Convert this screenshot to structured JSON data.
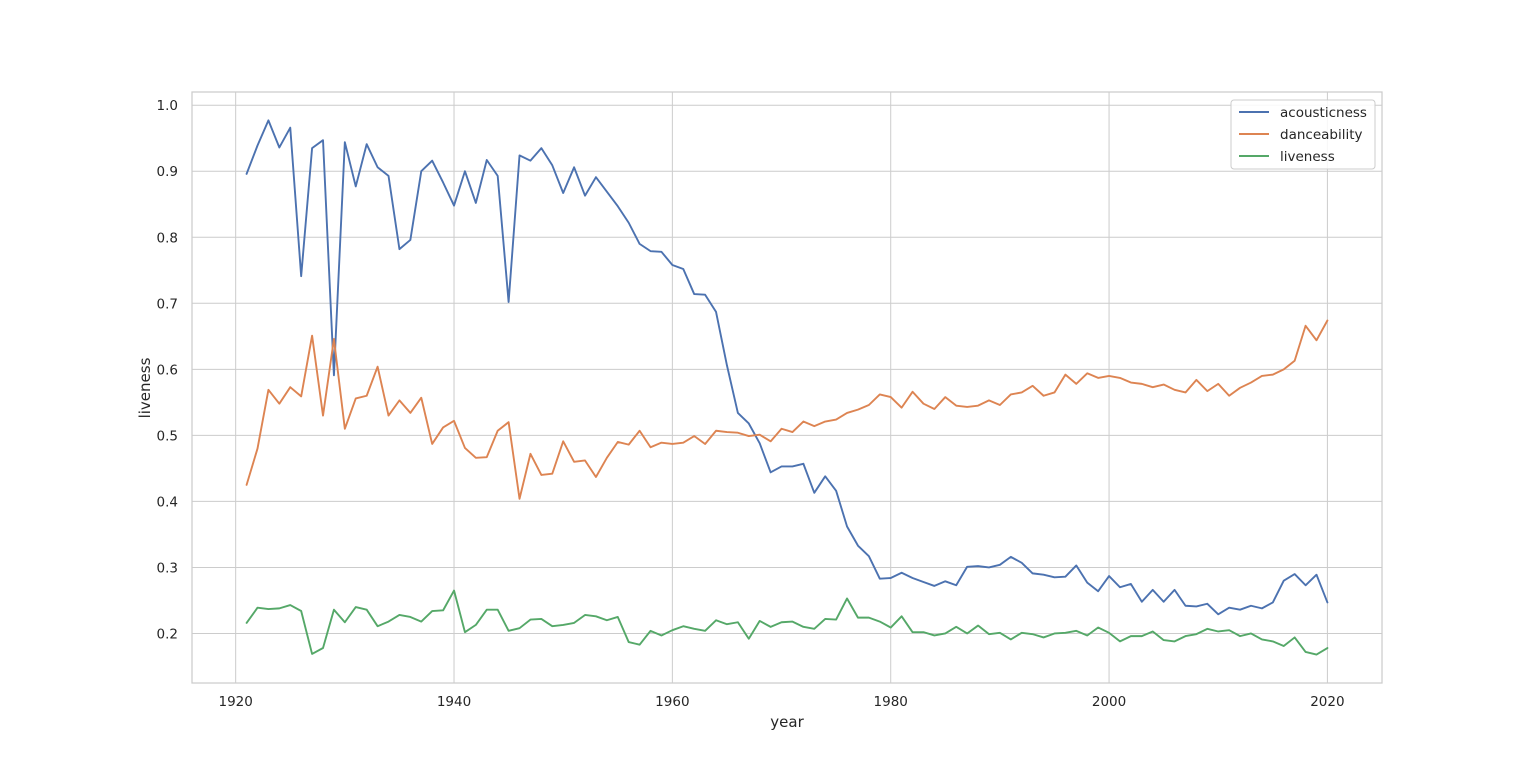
{
  "chart_data": {
    "type": "line",
    "title": "",
    "xlabel": "year",
    "ylabel": "liveness",
    "xlim": [
      1916,
      2025
    ],
    "ylim": [
      0.125,
      1.02
    ],
    "xticks": [
      1920,
      1940,
      1960,
      1980,
      2000,
      2020
    ],
    "yticks": [
      0.2,
      0.3,
      0.4,
      0.5,
      0.6,
      0.7,
      0.8,
      0.9,
      1.0
    ],
    "grid": true,
    "legend_position": "top-right",
    "x": [
      1921,
      1922,
      1923,
      1924,
      1925,
      1926,
      1927,
      1928,
      1929,
      1930,
      1931,
      1932,
      1933,
      1934,
      1935,
      1936,
      1937,
      1938,
      1939,
      1940,
      1941,
      1942,
      1943,
      1944,
      1945,
      1946,
      1947,
      1948,
      1949,
      1950,
      1951,
      1952,
      1953,
      1954,
      1955,
      1956,
      1957,
      1958,
      1959,
      1960,
      1961,
      1962,
      1963,
      1964,
      1965,
      1966,
      1967,
      1968,
      1969,
      1970,
      1971,
      1972,
      1973,
      1974,
      1975,
      1976,
      1977,
      1978,
      1979,
      1980,
      1981,
      1982,
      1983,
      1984,
      1985,
      1986,
      1987,
      1988,
      1989,
      1990,
      1991,
      1992,
      1993,
      1994,
      1995,
      1996,
      1997,
      1998,
      1999,
      2000,
      2001,
      2002,
      2003,
      2004,
      2005,
      2006,
      2007,
      2008,
      2009,
      2010,
      2011,
      2012,
      2013,
      2014,
      2015,
      2016,
      2017,
      2018,
      2019,
      2020
    ],
    "series": [
      {
        "name": "acousticness",
        "color": "#4c72b0",
        "values": [
          0.896,
          0.939,
          0.977,
          0.936,
          0.966,
          0.741,
          0.935,
          0.947,
          0.591,
          0.944,
          0.877,
          0.941,
          0.906,
          0.893,
          0.782,
          0.796,
          0.9,
          0.916,
          0.883,
          0.848,
          0.9,
          0.852,
          0.917,
          0.893,
          0.702,
          0.924,
          0.916,
          0.935,
          0.909,
          0.867,
          0.906,
          0.863,
          0.891,
          0.869,
          0.847,
          0.822,
          0.79,
          0.779,
          0.778,
          0.758,
          0.752,
          0.714,
          0.713,
          0.687,
          0.606,
          0.534,
          0.518,
          0.488,
          0.444,
          0.453,
          0.453,
          0.457,
          0.413,
          0.438,
          0.416,
          0.362,
          0.333,
          0.317,
          0.283,
          0.284,
          0.292,
          0.284,
          0.278,
          0.272,
          0.279,
          0.273,
          0.301,
          0.302,
          0.3,
          0.304,
          0.316,
          0.307,
          0.291,
          0.289,
          0.285,
          0.286,
          0.303,
          0.277,
          0.264,
          0.287,
          0.27,
          0.275,
          0.248,
          0.266,
          0.248,
          0.266,
          0.242,
          0.241,
          0.245,
          0.229,
          0.239,
          0.236,
          0.242,
          0.238,
          0.247,
          0.28,
          0.29,
          0.273,
          0.289,
          0.247
        ]
      },
      {
        "name": "danceability",
        "color": "#dd8452",
        "values": [
          0.425,
          0.48,
          0.569,
          0.548,
          0.573,
          0.559,
          0.651,
          0.53,
          0.646,
          0.51,
          0.556,
          0.56,
          0.604,
          0.53,
          0.553,
          0.534,
          0.557,
          0.487,
          0.512,
          0.522,
          0.481,
          0.466,
          0.467,
          0.507,
          0.52,
          0.404,
          0.472,
          0.44,
          0.442,
          0.491,
          0.46,
          0.462,
          0.437,
          0.466,
          0.49,
          0.486,
          0.507,
          0.482,
          0.489,
          0.487,
          0.489,
          0.499,
          0.487,
          0.507,
          0.505,
          0.504,
          0.499,
          0.501,
          0.491,
          0.51,
          0.505,
          0.521,
          0.514,
          0.521,
          0.524,
          0.534,
          0.539,
          0.546,
          0.562,
          0.558,
          0.542,
          0.566,
          0.548,
          0.54,
          0.558,
          0.545,
          0.543,
          0.545,
          0.553,
          0.546,
          0.562,
          0.565,
          0.575,
          0.56,
          0.565,
          0.592,
          0.578,
          0.594,
          0.587,
          0.59,
          0.587,
          0.58,
          0.578,
          0.573,
          0.577,
          0.569,
          0.565,
          0.584,
          0.567,
          0.578,
          0.56,
          0.572,
          0.58,
          0.59,
          0.592,
          0.6,
          0.613,
          0.666,
          0.644,
          0.674
        ]
      },
      {
        "name": "liveness",
        "color": "#55a868",
        "values": [
          0.216,
          0.239,
          0.237,
          0.238,
          0.243,
          0.234,
          0.169,
          0.178,
          0.236,
          0.217,
          0.24,
          0.236,
          0.211,
          0.218,
          0.228,
          0.225,
          0.218,
          0.234,
          0.235,
          0.265,
          0.202,
          0.213,
          0.236,
          0.236,
          0.204,
          0.208,
          0.221,
          0.222,
          0.211,
          0.213,
          0.216,
          0.228,
          0.226,
          0.22,
          0.225,
          0.187,
          0.183,
          0.204,
          0.197,
          0.205,
          0.211,
          0.207,
          0.204,
          0.22,
          0.214,
          0.217,
          0.192,
          0.219,
          0.21,
          0.217,
          0.218,
          0.21,
          0.207,
          0.222,
          0.221,
          0.253,
          0.224,
          0.224,
          0.218,
          0.209,
          0.226,
          0.202,
          0.202,
          0.197,
          0.2,
          0.21,
          0.2,
          0.212,
          0.199,
          0.201,
          0.191,
          0.201,
          0.199,
          0.194,
          0.2,
          0.201,
          0.204,
          0.197,
          0.209,
          0.201,
          0.188,
          0.196,
          0.196,
          0.203,
          0.19,
          0.188,
          0.196,
          0.199,
          0.207,
          0.203,
          0.205,
          0.196,
          0.2,
          0.191,
          0.188,
          0.181,
          0.194,
          0.172,
          0.168,
          0.178
        ]
      }
    ]
  }
}
